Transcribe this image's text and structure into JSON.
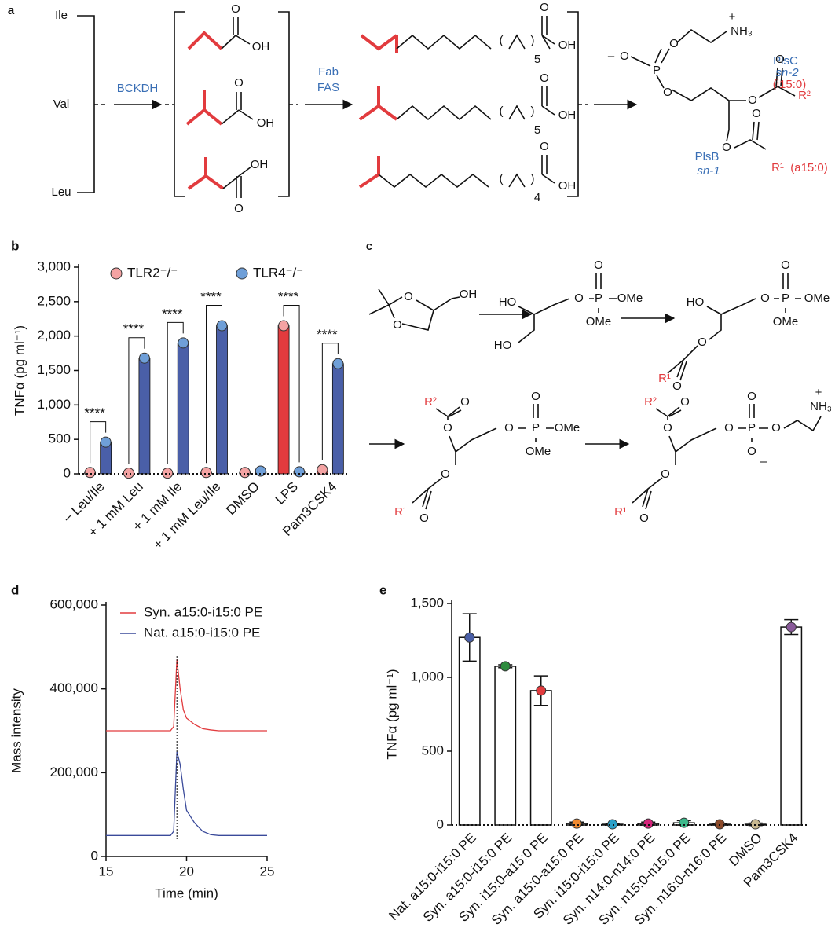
{
  "panel_a": {
    "panel": "a",
    "amino_acids": [
      "Ile",
      "Val",
      "Leu"
    ],
    "enzymes": [
      "BCKDH",
      "Fab",
      "FAS"
    ],
    "atoms": [
      "O",
      "OH",
      "O",
      "OH",
      "OH",
      "O",
      "(",
      ")",
      "5",
      "O",
      "OH",
      "(",
      ")",
      "5",
      "O",
      "OH",
      "(",
      ")",
      "4",
      "O",
      "OH",
      "–",
      "O",
      "P",
      "O",
      "O",
      "+",
      "NH₃",
      "O",
      "O",
      "R²",
      "O",
      "O",
      "R¹"
    ],
    "pe_labels": [
      "PlsC",
      "sn-2",
      "(i15:0)",
      "PlsB",
      "sn-1",
      "(a15:0)"
    ]
  },
  "panel_c": {
    "panel": "c",
    "atoms": [
      "O",
      "O",
      "OH",
      "HO",
      "HO",
      "O",
      "P",
      "O",
      "OMe",
      "OMe",
      "HO",
      "O",
      "P",
      "O",
      "OMe",
      "OMe",
      "O",
      "R¹",
      "O",
      "R²",
      "O",
      "O",
      "O",
      "P",
      "O",
      "OMe",
      "OMe",
      "O",
      "R¹",
      "O",
      "R²",
      "O",
      "O",
      "O",
      "P",
      "O",
      "O",
      "–",
      "O",
      "+",
      "NH₃",
      "O",
      "R¹",
      "O"
    ]
  },
  "chart_data": [
    {
      "type": "bar",
      "panel": "b",
      "y_label": "TNFα (pg ml⁻¹)",
      "categories": [
        "− Leu/Ile",
        "+ 1 mM Leu",
        "+ 1 mM Ile",
        "+ 1 mM Leu/Ile",
        "DMSO",
        "LPS",
        "Pam3CSK4"
      ],
      "series": [
        {
          "name": "TLR2⁻/⁻",
          "color": "#e23b3e",
          "marker_color": "#f4a3a3",
          "values": [
            20,
            10,
            10,
            20,
            20,
            2150,
            60
          ]
        },
        {
          "name": "TLR4⁻/⁻",
          "color": "#4a5fa8",
          "marker_color": "#6f9fd8",
          "values": [
            460,
            1680,
            1900,
            2150,
            40,
            30,
            1600
          ]
        }
      ],
      "annotations": [
        "****",
        "****",
        "****",
        "****",
        null,
        "****",
        "****"
      ],
      "ylim": [
        0,
        3000
      ],
      "yticks": [
        0,
        500,
        {
          "value": 1000,
          "label": "1,000"
        },
        {
          "value": 1500,
          "label": "1,500"
        },
        {
          "value": 2000,
          "label": "2,000"
        },
        {
          "value": 2500,
          "label": "2,500"
        },
        {
          "value": 3000,
          "label": "3,000"
        }
      ],
      "legend": "top"
    },
    {
      "type": "line",
      "panel": "d",
      "x_label": "Time (min)",
      "y_label": "Mass intensity",
      "x": [
        15,
        16,
        17,
        18,
        19,
        19.2,
        19.4,
        19.6,
        19.8,
        20,
        20.5,
        21,
        21.5,
        22,
        23,
        24,
        25
      ],
      "series": [
        {
          "name": "Syn. a15:0-i15:0 PE",
          "color": "#e23b3e",
          "values": [
            300000,
            300000,
            300000,
            300000,
            300000,
            310000,
            470000,
            400000,
            350000,
            330000,
            315000,
            305000,
            302000,
            300000,
            300000,
            300000,
            300000
          ]
        },
        {
          "name": "Nat. a15:0-i15:0 PE",
          "color": "#3a4a9a",
          "values": [
            50000,
            50000,
            50000,
            50000,
            50000,
            60000,
            250000,
            220000,
            160000,
            110000,
            80000,
            60000,
            52000,
            50000,
            50000,
            50000,
            50000
          ]
        }
      ],
      "vline": 19.4,
      "xlim": [
        15,
        25
      ],
      "xticks": [
        15,
        20,
        25
      ],
      "ylim": [
        0,
        600000
      ],
      "yticks": [
        0,
        {
          "value": 200000,
          "label": "200,000"
        },
        {
          "value": 400000,
          "label": "400,000"
        },
        {
          "value": 600000,
          "label": "600,000"
        }
      ],
      "legend": "top-right"
    },
    {
      "type": "bar",
      "panel": "e",
      "y_label": "TNFα (pg ml⁻¹)",
      "categories": [
        "Nat. a15:0-i15:0 PE",
        "Syn. a15:0-i15:0 PE",
        "Syn. i15:0-a15:0 PE",
        "Syn. a15:0-a15:0 PE",
        "Syn. i15:0-i15:0 PE",
        "Syn. n14:0-n14:0 PE",
        "Syn. n15:0-n15:0 PE",
        "Syn. n16:0-n16:0 PE",
        "DMSO",
        "Pam3CSK4"
      ],
      "values": [
        1270,
        1075,
        910,
        10,
        5,
        10,
        15,
        5,
        5,
        1340
      ],
      "errors": [
        160,
        10,
        100,
        10,
        5,
        10,
        15,
        5,
        8,
        50
      ],
      "color": "#ffffff",
      "point_colors": [
        "#4a5fa8",
        "#2e8b3e",
        "#e23b3e",
        "#f08a30",
        "#2aa0c8",
        "#d4247a",
        "#3cb88a",
        "#8b4a2a",
        "#c8b890",
        "#8a5a9a"
      ],
      "ylim": [
        0,
        1500
      ],
      "yticks": [
        0,
        500,
        {
          "value": 1000,
          "label": "1,000"
        },
        {
          "value": 1500,
          "label": "1,500"
        }
      ]
    }
  ]
}
